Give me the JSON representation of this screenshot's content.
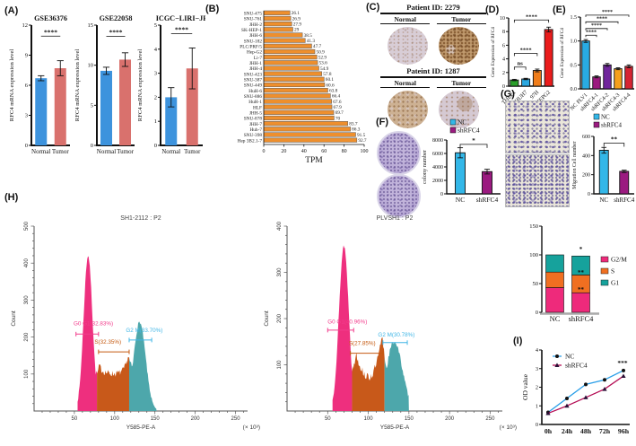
{
  "figure": {
    "panel_labels": [
      "(A)",
      "(B)",
      "(C)",
      "(D)",
      "(E)",
      "(F)",
      "(G)",
      "(H)",
      "(I)"
    ]
  },
  "panel_c": {
    "blocks": [
      {
        "title": "Patient ID: 2279",
        "cols": [
          "Normal",
          "Tumor"
        ]
      },
      {
        "title": "Pateint ID: 1287",
        "cols": [
          "Normal",
          "Tumor"
        ]
      }
    ]
  },
  "chart_data": [
    {
      "id": "a1",
      "type": "bar",
      "title": "GSE36376",
      "ylabel": "RFC4 mRNA expression level",
      "categories": [
        "Normal",
        "Tumor"
      ],
      "values": [
        6.7,
        7.7
      ],
      "errors": [
        0.25,
        0.75
      ],
      "colors": [
        "#3d93dd",
        "#d9716d"
      ],
      "ylim": [
        0,
        12
      ],
      "yticks": [
        0,
        3,
        6,
        9,
        12
      ],
      "brackets": [
        {
          "a": 0,
          "b": 1,
          "y": 10.9,
          "label": "****",
          "drop": 0
        }
      ]
    },
    {
      "id": "a2",
      "type": "bar",
      "title": "GSE22058",
      "ylabel": "RFC4 mRNA expression level",
      "categories": [
        "Normal",
        "Tumor"
      ],
      "values": [
        9.3,
        10.7
      ],
      "errors": [
        0.45,
        0.85
      ],
      "colors": [
        "#3d93dd",
        "#d9716d"
      ],
      "ylim": [
        0,
        15
      ],
      "yticks": [
        0,
        5,
        10,
        15
      ],
      "brackets": [
        {
          "a": 0,
          "b": 1,
          "y": 13.6,
          "label": "****",
          "drop": 0
        }
      ]
    },
    {
      "id": "a3",
      "type": "bar",
      "title": "ICGC−LIRI−JP",
      "ylabel": "RFC4 mRNA expression level",
      "categories": [
        "Normal",
        "Tumor"
      ],
      "values": [
        2.0,
        3.2
      ],
      "errors": [
        0.4,
        0.85
      ],
      "colors": [
        "#3d93dd",
        "#d9716d"
      ],
      "ylim": [
        0,
        5
      ],
      "yticks": [
        0,
        1,
        2,
        3,
        4,
        5
      ],
      "brackets": [
        {
          "a": 0,
          "b": 1,
          "y": 4.65,
          "label": "****",
          "drop": 0
        }
      ]
    },
    {
      "id": "b",
      "type": "hbar",
      "xlabel": "TPM",
      "xlim": [
        0,
        100
      ],
      "xticks": [
        0,
        20,
        40,
        60,
        80,
        100
      ],
      "bar_color": "#ee8f2d",
      "bar_stroke": "#6e655c",
      "categories": [
        "SNU-475",
        "SNU-761",
        "JHH-2",
        "SK-HEP-1",
        "JHH-6",
        "SNU-182",
        "PLC/PRF/5",
        "Hep-G2",
        "Li-7",
        "JHH-1",
        "JHH-4",
        "SNU-423",
        "SNU-387",
        "SNU-449",
        "HuH-6",
        "SNU-886",
        "HuH-1",
        "HLF",
        "JHH-5",
        "SNU-878",
        "JHH-7",
        "Huh-7",
        "SNU-398",
        "Hep 3B2.1-7"
      ],
      "values": [
        26.1,
        26.9,
        27.9,
        29,
        38.5,
        41.3,
        47.7,
        50.9,
        52.9,
        53.6,
        54.9,
        57.8,
        60.1,
        60.6,
        63.8,
        66.4,
        67.6,
        67.9,
        69.7,
        70,
        83.7,
        86.3,
        91.5,
        92.7
      ]
    },
    {
      "id": "d",
      "type": "bar",
      "ylabel": "Gene Expression of RFC4",
      "categories": [
        "THLE1",
        "HUH7",
        "97H",
        "HEPG2"
      ],
      "values": [
        0.9,
        1.05,
        2.3,
        8.3
      ],
      "errors": [
        0.1,
        0.1,
        0.2,
        0.35
      ],
      "colors": [
        "#2aa02a",
        "#2aa7e0",
        "#f07d1a",
        "#ea1c1c"
      ],
      "outline": true,
      "ylim": [
        0,
        10
      ],
      "yticks": [
        0,
        2,
        4,
        6,
        8,
        10
      ],
      "rotate_x": true,
      "brackets": [
        {
          "a": 0,
          "b": 1,
          "y": 2.8,
          "label": "ns",
          "drop": 3
        },
        {
          "a": 0,
          "b": 2,
          "y": 4.8,
          "label": "****",
          "drop": 3
        },
        {
          "a": 0,
          "b": 3,
          "y": 9.7,
          "label": "****",
          "drop": 3
        }
      ]
    },
    {
      "id": "e",
      "type": "bar",
      "ylabel": "Gene Expression of RFC4",
      "categories": [
        "NC PLV1",
        "shRFC4-1",
        "shRFC4-2",
        "shRFC4-3",
        "shRFC4-4"
      ],
      "values": [
        1.0,
        0.25,
        0.5,
        0.42,
        0.47
      ],
      "errors": [
        0.03,
        0.02,
        0.03,
        0.02,
        0.03
      ],
      "colors": [
        "#29abe2",
        "#9c1a7f",
        "#70269c",
        "#f5a01b",
        "#d62432"
      ],
      "outline": true,
      "ylim": [
        0,
        1.5
      ],
      "yticks": [
        "0.0",
        "0.5",
        "1.0",
        "1.5"
      ],
      "rotate_x": true,
      "brackets": [
        {
          "a": 0,
          "b": 1,
          "y": 1.12,
          "label": "****",
          "drop": 2
        },
        {
          "a": 0,
          "b": 2,
          "y": 1.26,
          "label": "****",
          "drop": 2
        },
        {
          "a": 0,
          "b": 3,
          "y": 1.4,
          "label": "****",
          "drop": 2
        },
        {
          "a": 0,
          "b": 4,
          "y": 1.54,
          "label": "****",
          "drop": 2
        }
      ]
    },
    {
      "id": "f",
      "type": "bar",
      "ylabel": "colony number",
      "categories": [
        "NC",
        "shRFC4"
      ],
      "values": [
        6100,
        3300
      ],
      "errors": [
        750,
        350
      ],
      "colors": [
        "#33b7e8",
        "#9b1a80"
      ],
      "outline": true,
      "ylim": [
        0,
        8000
      ],
      "yticks": [
        0,
        2000,
        4000,
        6000,
        8000
      ],
      "legend": [
        {
          "label": "NC",
          "color": "#33b7e8"
        },
        {
          "label": "shRFC4",
          "color": "#9b1a80"
        }
      ],
      "brackets": [
        {
          "a": 0,
          "b": 1,
          "y": 7350,
          "label": "*",
          "drop": 4
        }
      ]
    },
    {
      "id": "g",
      "type": "bar",
      "ylabel": "Migration Cell number",
      "categories": [
        "NC",
        "shRFC4"
      ],
      "values": [
        455,
        235
      ],
      "errors": [
        30,
        12
      ],
      "colors": [
        "#33b7e8",
        "#9b1a80"
      ],
      "outline": true,
      "ylim": [
        0,
        600
      ],
      "yticks": [
        0,
        200,
        400,
        600
      ],
      "legend": [
        {
          "label": "NC",
          "color": "#33b7e8"
        },
        {
          "label": "shRFC4",
          "color": "#9b1a80"
        }
      ],
      "brackets": [
        {
          "a": 0,
          "b": 1,
          "y": 530,
          "label": "**",
          "drop": 4
        }
      ]
    },
    {
      "id": "h1",
      "type": "flow",
      "title": "SH1-2112 : P2",
      "xlabel": "Y585-PE-A",
      "x_scale_note": "(× 10³)",
      "ylabel": "Count",
      "xlim": [
        0,
        265
      ],
      "xticks": [
        50,
        100,
        150,
        200,
        250
      ],
      "ylim": [
        0,
        500
      ],
      "yticks": [
        100,
        200,
        300,
        400,
        500
      ],
      "fills": {
        "g1": "#ee2f7e",
        "s": "#c8591a",
        "g2": "#4da7ab"
      },
      "curve": {
        "start": 54,
        "end": 152,
        "g1": {
          "mu": 67,
          "sig": 5.5,
          "amp": 420
        },
        "g2": {
          "mu": 131,
          "sig": 7.5,
          "amp": 240
        },
        "s": {
          "from": 76,
          "to": 122,
          "amp": 112,
          "dip": 0.1
        },
        "b1": 78,
        "b2": 118,
        "seed": 7
      },
      "populations": [
        {
          "name": "G0 G1(32.83%)",
          "color": "#f23d8c",
          "label_x": 49,
          "label_y": 232,
          "bracket": {
            "x1": 52,
            "x2": 80,
            "y": 208
          }
        },
        {
          "name": "S(32.35%)",
          "color": "#c55a11",
          "label_x": 75,
          "label_y": 182,
          "bracket": {
            "x1": 80,
            "x2": 118,
            "y": 160
          }
        },
        {
          "name": "G2 M(33.70%)",
          "color": "#41b6e6",
          "label_x": 114,
          "label_y": 214,
          "bracket": {
            "x1": 118,
            "x2": 146,
            "y": 192
          }
        }
      ]
    },
    {
      "id": "h2",
      "type": "flow",
      "title": "PLVSH1 : P2",
      "xlabel": "Y585-PE-A",
      "x_scale_note": "(× 10³)",
      "ylabel": "Count",
      "xlim": [
        0,
        265
      ],
      "xticks": [
        50,
        100,
        150,
        200,
        250
      ],
      "ylim": [
        0,
        400
      ],
      "yticks": [
        100,
        200,
        300,
        400
      ],
      "fills": {
        "g1": "#ee2f7e",
        "s": "#c8591a",
        "g2": "#4da7ab"
      },
      "curve": {
        "start": 56,
        "end": 150,
        "g1": {
          "mu": 70,
          "sig": 6,
          "amp": 358
        },
        "g2": {
          "mu": 132,
          "sig": 10,
          "amp": 150
        },
        "s": {
          "from": 80,
          "to": 122,
          "amp": 130,
          "dip": 0.45
        },
        "b1": 80,
        "b2": 120,
        "seed": 13
      },
      "populations": [
        {
          "name": "G0 G1(40.96%)",
          "color": "#f23d8c",
          "label_x": 50,
          "label_y": 189,
          "bracket": {
            "x1": 50,
            "x2": 82,
            "y": 175
          }
        },
        {
          "name": "S(27.85%)",
          "color": "#c55a11",
          "label_x": 76,
          "label_y": 143,
          "bracket": {
            "x1": 78,
            "x2": 118,
            "y": 125
          }
        },
        {
          "name": "G2 M(30.78%)",
          "color": "#41b6e6",
          "label_x": 112,
          "label_y": 161,
          "bracket": {
            "x1": 118,
            "x2": 148,
            "y": 148
          }
        }
      ]
    },
    {
      "id": "h3",
      "type": "stacked-bar",
      "categories": [
        "NC",
        "shRFC4"
      ],
      "series": [
        {
          "name": "G2/M",
          "color": "#ee2a7b",
          "values": [
            43,
            34
          ]
        },
        {
          "name": "S",
          "color": "#f06f21",
          "values": [
            27,
            31
          ]
        },
        {
          "name": "G1",
          "color": "#16a29c",
          "values": [
            30,
            33
          ]
        }
      ],
      "ylim": [
        0,
        150
      ],
      "yticks": [
        0,
        50,
        100,
        150
      ],
      "marks": [
        {
          "cat": 1,
          "y": 106,
          "label": "*"
        },
        {
          "cat": 1,
          "y": 66,
          "label": "**"
        },
        {
          "cat": 1,
          "y": 36,
          "label": "**"
        }
      ]
    },
    {
      "id": "i",
      "type": "line",
      "ylabel": "OD value",
      "x": [
        "0h",
        "24h",
        "48h",
        "72h",
        "96h"
      ],
      "series": [
        {
          "name": "NC",
          "color": "#2b9fe8",
          "marker": "circle",
          "marker_color": "#111111",
          "values": [
            0.65,
            1.4,
            2.15,
            2.4,
            2.9
          ]
        },
        {
          "name": "shRFC4",
          "color": "#b50f56",
          "marker": "triangle",
          "marker_color": "#2a0f35",
          "values": [
            0.6,
            1.0,
            1.45,
            1.9,
            2.6
          ]
        }
      ],
      "ylim": [
        0,
        4
      ],
      "yticks": [
        0,
        1,
        2,
        3,
        4
      ],
      "sig": "***"
    }
  ]
}
